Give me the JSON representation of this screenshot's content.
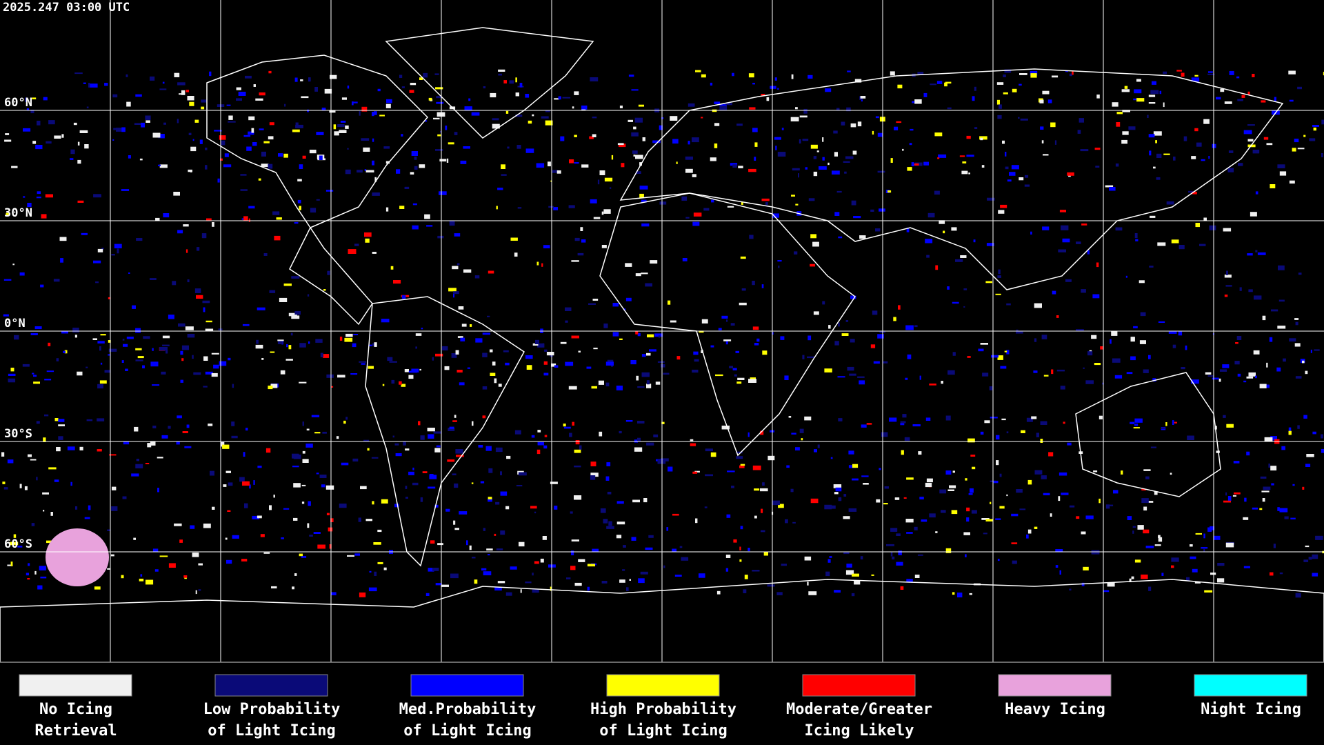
{
  "header": {
    "timestamp": "2025.247 03:00 UTC"
  },
  "map": {
    "latitude_labels": [
      "60°N",
      "30°N",
      "0°N",
      "30°S",
      "60°S"
    ]
  },
  "legend": [
    {
      "label_lines": [
        "No Icing",
        "Retrieval"
      ],
      "color": "#f0f0f0"
    },
    {
      "label_lines": [
        "Low Probability",
        "of Light Icing"
      ],
      "color": "#0a0a78"
    },
    {
      "label_lines": [
        "Med.Probability",
        "of Light Icing"
      ],
      "color": "#0000ff"
    },
    {
      "label_lines": [
        "High Probability",
        "of Light Icing"
      ],
      "color": "#ffff00"
    },
    {
      "label_lines": [
        "Moderate/Greater",
        "Icing Likely"
      ],
      "color": "#ff0000"
    },
    {
      "label_lines": [
        "Heavy Icing"
      ],
      "color": "#e8a2dc"
    },
    {
      "label_lines": [
        "Night Icing"
      ],
      "color": "#00ffff"
    }
  ]
}
